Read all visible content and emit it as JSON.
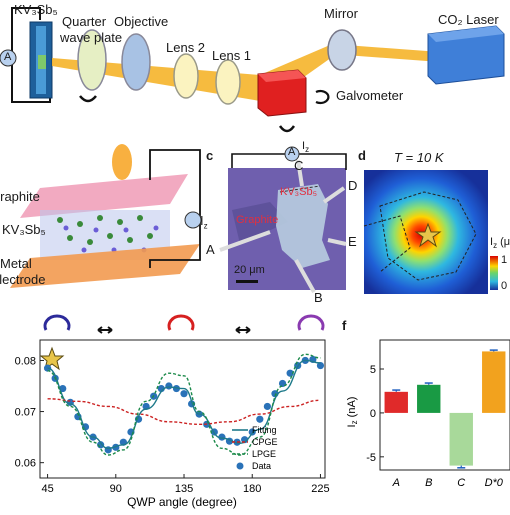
{
  "panel_a": {
    "sample": "KV₃Sb₅",
    "ammeter": "A",
    "qwp": "Quarter\nwave plate",
    "qwp_line1": "Quarter",
    "qwp_line2": "wave plate",
    "objective": "Objective",
    "lens2": "Lens 2",
    "lens1": "Lens 1",
    "mirror": "Mirror",
    "laser": "CO₂ Laser",
    "galvo": "Galvometer"
  },
  "panel_b": {
    "top": "Graphite",
    "mid": "KV₃Sb₅",
    "bottom1": "Metal",
    "bottom2": "electrode",
    "ammeter": "A",
    "current": "I"
  },
  "panel_c": {
    "letter": "c",
    "ammeter": "A",
    "current": "I",
    "material": "KV₃Sb₅",
    "graphite": "Graphite",
    "scale": "20 μm",
    "contacts": [
      "A",
      "B",
      "C",
      "D",
      "E"
    ]
  },
  "panel_d": {
    "letter": "d",
    "title": "T = 10 K",
    "cbar_label": "I",
    "cbar_unit": "(μ",
    "cbar_max": "1",
    "cbar_min": "0"
  },
  "panel_e": {
    "xlabel": "QWP angle (degree)",
    "xticks": [
      "45",
      "90",
      "135",
      "180",
      "225"
    ],
    "yticks": [
      "0.06",
      "0.07",
      "0.08"
    ],
    "legend": [
      "Fitting",
      "CPGE",
      "LPGE",
      "Data"
    ],
    "colors": {
      "fitting": "#1e7a8a",
      "cpge": "#cc2222",
      "lpge": "#1c8a4a",
      "data": "#2a72b8"
    }
  },
  "panel_f": {
    "letter": "f",
    "ylabel": "I",
    "yticks": [
      "5",
      "0",
      "-5"
    ],
    "categories": [
      "A",
      "B",
      "C",
      "D*0"
    ]
  },
  "chart_data": [
    {
      "type": "scatter",
      "xlabel": "QWP angle (degree)",
      "xlim": [
        40,
        228
      ],
      "ylim": [
        0.057,
        0.084
      ],
      "series": [
        {
          "name": "Data",
          "x": [
            45,
            50,
            55,
            60,
            65,
            70,
            75,
            80,
            85,
            90,
            95,
            100,
            105,
            110,
            115,
            120,
            125,
            130,
            135,
            140,
            145,
            150,
            155,
            160,
            165,
            170,
            175,
            180,
            185,
            190,
            195,
            200,
            205,
            210,
            215,
            220,
            225
          ],
          "y": [
            0.0785,
            0.0765,
            0.0745,
            0.0718,
            0.069,
            0.067,
            0.065,
            0.0635,
            0.0625,
            0.063,
            0.064,
            0.066,
            0.0685,
            0.071,
            0.073,
            0.0745,
            0.075,
            0.0745,
            0.0735,
            0.0715,
            0.0695,
            0.0675,
            0.066,
            0.065,
            0.0642,
            0.064,
            0.0645,
            0.066,
            0.0685,
            0.071,
            0.0735,
            0.0755,
            0.0775,
            0.079,
            0.08,
            0.0802,
            0.079
          ]
        },
        {
          "name": "Fitting",
          "x": [
            45,
            60,
            75,
            85,
            95,
            110,
            125,
            135,
            145,
            160,
            172,
            185,
            200,
            215,
            225
          ],
          "y": [
            0.0785,
            0.0715,
            0.065,
            0.0628,
            0.0635,
            0.0705,
            0.0748,
            0.0745,
            0.0695,
            0.0648,
            0.0638,
            0.0665,
            0.074,
            0.08,
            0.0795
          ]
        },
        {
          "name": "CPGE",
          "x": [
            45,
            65,
            85,
            105,
            125,
            145,
            165,
            185,
            205,
            225
          ],
          "y": [
            0.0725,
            0.072,
            0.071,
            0.0695,
            0.068,
            0.0675,
            0.068,
            0.0695,
            0.071,
            0.0722
          ]
        },
        {
          "name": "LPGE",
          "x": [
            45,
            60,
            75,
            85,
            95,
            110,
            125,
            135,
            145,
            160,
            172,
            185,
            200,
            215,
            225
          ],
          "y": [
            0.078,
            0.071,
            0.064,
            0.0615,
            0.0625,
            0.072,
            0.0775,
            0.077,
            0.07,
            0.0628,
            0.0615,
            0.065,
            0.075,
            0.0812,
            0.0805
          ]
        }
      ]
    },
    {
      "type": "bar",
      "categories": [
        "A",
        "B",
        "C",
        "D*0"
      ],
      "values": [
        2.4,
        3.2,
        -6.0,
        7.0
      ],
      "errors": [
        0.2,
        0.2,
        0.25,
        0.15
      ],
      "colors": [
        "#e02a2a",
        "#199a44",
        "#a8d99a",
        "#f2a21e"
      ],
      "ylim": [
        -6.5,
        8.3
      ],
      "ylabel": "I"
    }
  ]
}
